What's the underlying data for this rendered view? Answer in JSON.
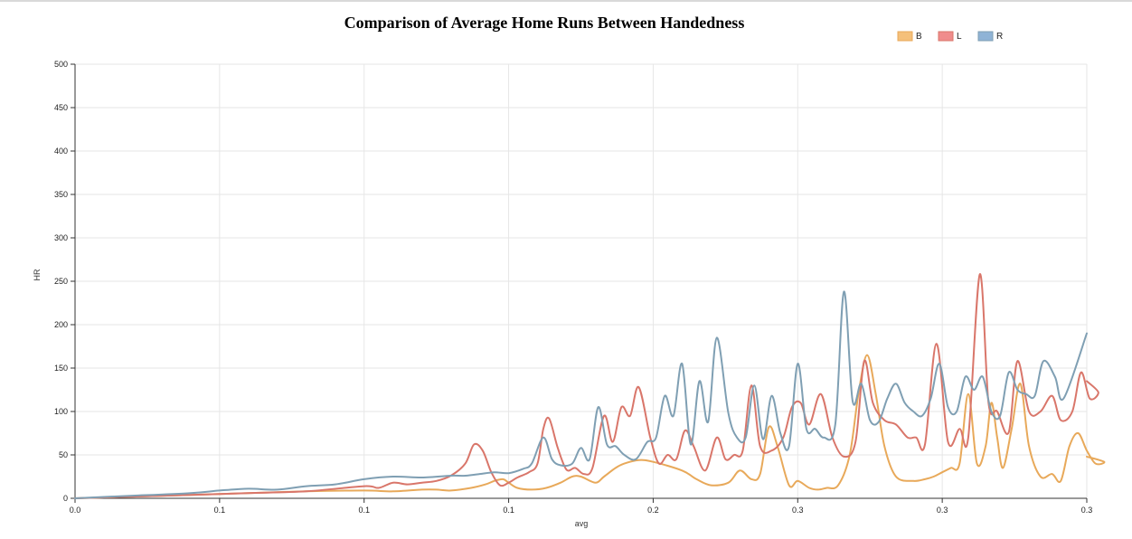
{
  "chart_data": {
    "type": "line",
    "title": "Comparison of Average Home Runs Between Handedness",
    "xlabel": "avg",
    "ylabel": "HR",
    "xlim": [
      0.0,
      0.35
    ],
    "ylim": [
      0,
      500
    ],
    "x_ticks": [
      0.0,
      0.05,
      0.1,
      0.15,
      0.2,
      0.25,
      0.3,
      0.35
    ],
    "x_tick_labels": [
      "0.0",
      "0.1",
      "0.1",
      "0.1",
      "0.2",
      "0.3",
      "0.3",
      "0.3"
    ],
    "y_ticks": [
      0,
      50,
      100,
      150,
      200,
      250,
      300,
      350,
      400,
      450,
      500
    ],
    "y_tick_labels": [
      "0",
      "50",
      "100",
      "150",
      "200",
      "250",
      "300",
      "350",
      "400",
      "450",
      "500"
    ],
    "grid": true,
    "legend_position": "top-right",
    "series": [
      {
        "name": "B",
        "color": "#e8a95a",
        "fill": "#f5c07a",
        "points": [
          [
            0.0,
            0
          ],
          [
            0.02,
            2
          ],
          [
            0.04,
            4
          ],
          [
            0.06,
            6
          ],
          [
            0.08,
            8
          ],
          [
            0.1,
            9
          ],
          [
            0.11,
            8
          ],
          [
            0.12,
            10
          ],
          [
            0.125,
            10
          ],
          [
            0.13,
            9
          ],
          [
            0.137,
            12
          ],
          [
            0.142,
            16
          ],
          [
            0.145,
            20
          ],
          [
            0.148,
            22
          ],
          [
            0.15,
            18
          ],
          [
            0.153,
            12
          ],
          [
            0.158,
            10
          ],
          [
            0.163,
            12
          ],
          [
            0.168,
            18
          ],
          [
            0.172,
            25
          ],
          [
            0.175,
            25
          ],
          [
            0.18,
            18
          ],
          [
            0.183,
            25
          ],
          [
            0.187,
            35
          ],
          [
            0.19,
            40
          ],
          [
            0.195,
            44
          ],
          [
            0.2,
            42
          ],
          [
            0.21,
            32
          ],
          [
            0.215,
            22
          ],
          [
            0.22,
            15
          ],
          [
            0.226,
            18
          ],
          [
            0.23,
            32
          ],
          [
            0.234,
            22
          ],
          [
            0.237,
            28
          ],
          [
            0.24,
            82
          ],
          [
            0.243,
            60
          ],
          [
            0.247,
            15
          ],
          [
            0.25,
            20
          ],
          [
            0.254,
            12
          ],
          [
            0.257,
            10
          ],
          [
            0.26,
            12
          ],
          [
            0.264,
            15
          ],
          [
            0.268,
            50
          ],
          [
            0.271,
            120
          ],
          [
            0.274,
            165
          ],
          [
            0.277,
            120
          ],
          [
            0.28,
            60
          ],
          [
            0.284,
            25
          ],
          [
            0.29,
            20
          ],
          [
            0.294,
            22
          ],
          [
            0.297,
            25
          ],
          [
            0.3,
            30
          ],
          [
            0.303,
            35
          ],
          [
            0.306,
            40
          ],
          [
            0.309,
            120
          ],
          [
            0.312,
            40
          ],
          [
            0.315,
            60
          ],
          [
            0.317,
            110
          ],
          [
            0.319,
            70
          ],
          [
            0.321,
            35
          ],
          [
            0.324,
            80
          ],
          [
            0.327,
            132
          ],
          [
            0.33,
            60
          ],
          [
            0.334,
            25
          ],
          [
            0.338,
            28
          ],
          [
            0.341,
            20
          ],
          [
            0.344,
            60
          ],
          [
            0.347,
            75
          ],
          [
            0.35,
            55
          ],
          [
            0.353,
            40
          ],
          [
            0.356,
            42
          ],
          [
            0.35,
            48
          ]
        ]
      },
      {
        "name": "L",
        "color": "#d9766a",
        "fill": "#f08c8c",
        "points": [
          [
            0.0,
            0
          ],
          [
            0.02,
            2
          ],
          [
            0.04,
            4
          ],
          [
            0.06,
            6
          ],
          [
            0.08,
            8
          ],
          [
            0.1,
            14
          ],
          [
            0.105,
            12
          ],
          [
            0.11,
            18
          ],
          [
            0.115,
            16
          ],
          [
            0.12,
            18
          ],
          [
            0.125,
            20
          ],
          [
            0.13,
            26
          ],
          [
            0.135,
            40
          ],
          [
            0.138,
            62
          ],
          [
            0.141,
            55
          ],
          [
            0.144,
            30
          ],
          [
            0.147,
            15
          ],
          [
            0.15,
            18
          ],
          [
            0.153,
            24
          ],
          [
            0.157,
            30
          ],
          [
            0.16,
            40
          ],
          [
            0.162,
            80
          ],
          [
            0.164,
            92
          ],
          [
            0.167,
            58
          ],
          [
            0.17,
            33
          ],
          [
            0.173,
            35
          ],
          [
            0.176,
            28
          ],
          [
            0.179,
            35
          ],
          [
            0.183,
            95
          ],
          [
            0.186,
            65
          ],
          [
            0.189,
            105
          ],
          [
            0.192,
            95
          ],
          [
            0.195,
            128
          ],
          [
            0.199,
            70
          ],
          [
            0.202,
            40
          ],
          [
            0.205,
            50
          ],
          [
            0.208,
            45
          ],
          [
            0.211,
            78
          ],
          [
            0.214,
            60
          ],
          [
            0.218,
            32
          ],
          [
            0.222,
            70
          ],
          [
            0.225,
            45
          ],
          [
            0.228,
            50
          ],
          [
            0.231,
            55
          ],
          [
            0.234,
            130
          ],
          [
            0.237,
            60
          ],
          [
            0.241,
            55
          ],
          [
            0.245,
            70
          ],
          [
            0.248,
            105
          ],
          [
            0.251,
            110
          ],
          [
            0.254,
            85
          ],
          [
            0.258,
            120
          ],
          [
            0.262,
            70
          ],
          [
            0.266,
            48
          ],
          [
            0.27,
            65
          ],
          [
            0.273,
            158
          ],
          [
            0.276,
            110
          ],
          [
            0.28,
            90
          ],
          [
            0.284,
            85
          ],
          [
            0.288,
            70
          ],
          [
            0.291,
            70
          ],
          [
            0.294,
            62
          ],
          [
            0.298,
            178
          ],
          [
            0.302,
            65
          ],
          [
            0.306,
            80
          ],
          [
            0.309,
            70
          ],
          [
            0.313,
            258
          ],
          [
            0.316,
            110
          ],
          [
            0.319,
            100
          ],
          [
            0.323,
            76
          ],
          [
            0.326,
            158
          ],
          [
            0.33,
            100
          ],
          [
            0.334,
            100
          ],
          [
            0.338,
            118
          ],
          [
            0.341,
            90
          ],
          [
            0.345,
            100
          ],
          [
            0.348,
            145
          ],
          [
            0.351,
            115
          ],
          [
            0.354,
            122
          ],
          [
            0.35,
            135
          ]
        ]
      },
      {
        "name": "R",
        "color": "#7f9fb3",
        "fill": "#8fb3d6",
        "points": [
          [
            0.0,
            0
          ],
          [
            0.02,
            3
          ],
          [
            0.04,
            6
          ],
          [
            0.05,
            9
          ],
          [
            0.06,
            11
          ],
          [
            0.07,
            10
          ],
          [
            0.08,
            14
          ],
          [
            0.09,
            16
          ],
          [
            0.1,
            22
          ],
          [
            0.11,
            25
          ],
          [
            0.12,
            24
          ],
          [
            0.13,
            26
          ],
          [
            0.135,
            26
          ],
          [
            0.14,
            28
          ],
          [
            0.145,
            30
          ],
          [
            0.15,
            29
          ],
          [
            0.155,
            34
          ],
          [
            0.158,
            40
          ],
          [
            0.162,
            70
          ],
          [
            0.165,
            45
          ],
          [
            0.168,
            38
          ],
          [
            0.172,
            40
          ],
          [
            0.175,
            58
          ],
          [
            0.178,
            45
          ],
          [
            0.181,
            105
          ],
          [
            0.184,
            62
          ],
          [
            0.187,
            60
          ],
          [
            0.19,
            50
          ],
          [
            0.194,
            45
          ],
          [
            0.198,
            65
          ],
          [
            0.201,
            70
          ],
          [
            0.204,
            118
          ],
          [
            0.207,
            95
          ],
          [
            0.21,
            155
          ],
          [
            0.213,
            62
          ],
          [
            0.216,
            135
          ],
          [
            0.219,
            88
          ],
          [
            0.222,
            185
          ],
          [
            0.226,
            98
          ],
          [
            0.229,
            70
          ],
          [
            0.232,
            70
          ],
          [
            0.235,
            130
          ],
          [
            0.238,
            68
          ],
          [
            0.241,
            118
          ],
          [
            0.244,
            75
          ],
          [
            0.247,
            60
          ],
          [
            0.25,
            155
          ],
          [
            0.253,
            80
          ],
          [
            0.256,
            80
          ],
          [
            0.259,
            70
          ],
          [
            0.263,
            85
          ],
          [
            0.266,
            238
          ],
          [
            0.269,
            112
          ],
          [
            0.272,
            132
          ],
          [
            0.275,
            90
          ],
          [
            0.278,
            88
          ],
          [
            0.281,
            115
          ],
          [
            0.284,
            132
          ],
          [
            0.287,
            110
          ],
          [
            0.29,
            100
          ],
          [
            0.293,
            95
          ],
          [
            0.296,
            115
          ],
          [
            0.299,
            155
          ],
          [
            0.302,
            105
          ],
          [
            0.305,
            100
          ],
          [
            0.308,
            140
          ],
          [
            0.311,
            125
          ],
          [
            0.314,
            140
          ],
          [
            0.317,
            100
          ],
          [
            0.32,
            95
          ],
          [
            0.323,
            145
          ],
          [
            0.326,
            125
          ],
          [
            0.329,
            120
          ],
          [
            0.332,
            118
          ],
          [
            0.335,
            158
          ],
          [
            0.339,
            140
          ],
          [
            0.342,
            115
          ],
          [
            0.35,
            190
          ]
        ]
      }
    ]
  }
}
